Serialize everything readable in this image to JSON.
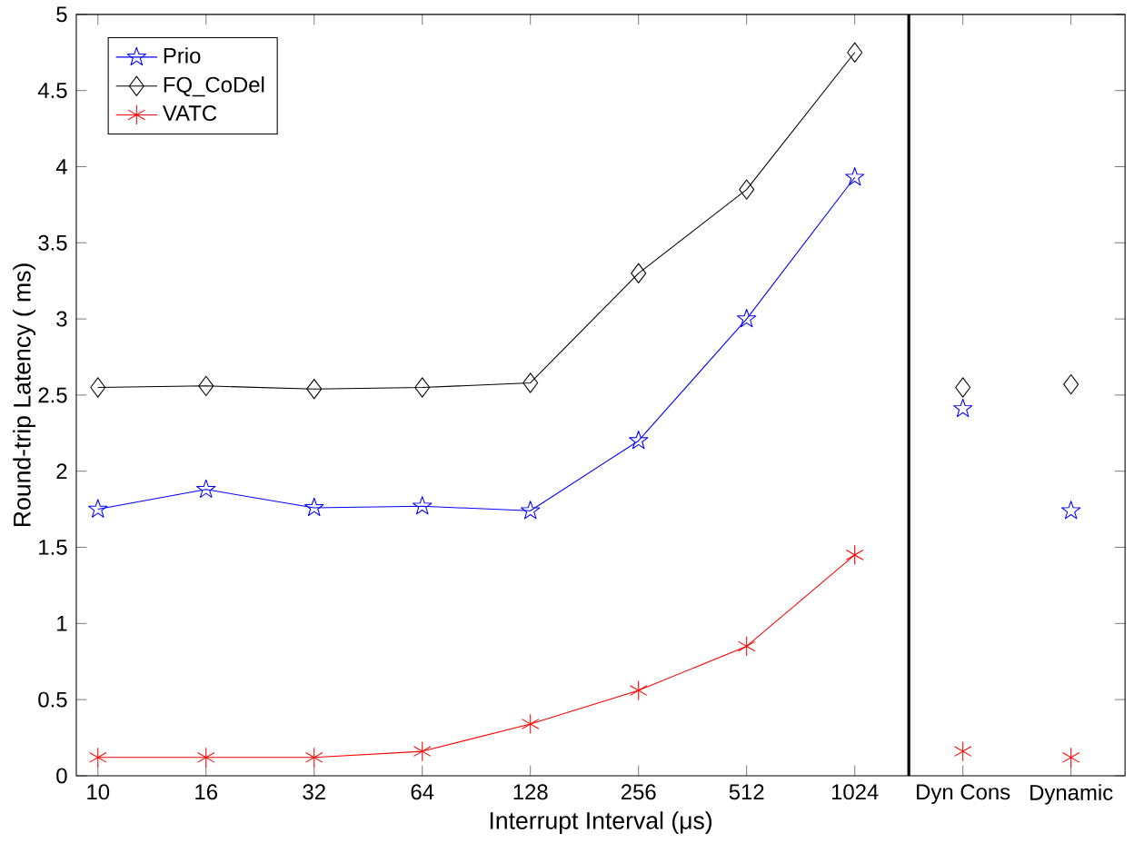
{
  "chart_data": {
    "type": "line",
    "xlabel": "Interrupt Interval (μs)",
    "ylabel": "Round-trip Latency ( ms)",
    "categories": [
      "10",
      "16",
      "32",
      "64",
      "128",
      "256",
      "512",
      "1024",
      "Dyn Cons",
      "Dynamic"
    ],
    "ylim": [
      0,
      5
    ],
    "yticks": [
      0,
      0.5,
      1,
      1.5,
      2,
      2.5,
      3,
      3.5,
      4,
      4.5,
      5
    ],
    "grid": false,
    "legend": "top left",
    "series": [
      {
        "name": "Prio",
        "color": "#0000ff",
        "marker": "star",
        "values": [
          1.75,
          1.88,
          1.76,
          1.77,
          1.74,
          2.2,
          3.0,
          3.93,
          null,
          null
        ]
      },
      {
        "name": "FQ_CoDel",
        "color": "#000000",
        "marker": "diamond",
        "values": [
          2.55,
          2.56,
          2.54,
          2.55,
          2.58,
          3.3,
          3.85,
          4.75,
          null,
          null
        ]
      },
      {
        "name": "VATC",
        "color": "#ff0000",
        "marker": "cross",
        "values": [
          0.12,
          0.12,
          0.12,
          0.16,
          0.34,
          0.56,
          0.85,
          1.45,
          null,
          null
        ]
      },
      {
        "type": "scatter",
        "color": "#0000ff",
        "marker": "star",
        "x": [
          "Dyn Cons",
          "Dynamic"
        ],
        "values": [
          2.41,
          1.74
        ]
      },
      {
        "type": "scatter",
        "color": "#000000",
        "marker": "diamond",
        "x": [
          "Dyn Cons",
          "Dynamic"
        ],
        "values": [
          2.55,
          2.57
        ]
      },
      {
        "type": "scatter",
        "color": "#ff0000",
        "marker": "cross",
        "x": [
          "Dyn Cons",
          "Dynamic"
        ],
        "values": [
          0.16,
          0.12
        ]
      }
    ]
  }
}
